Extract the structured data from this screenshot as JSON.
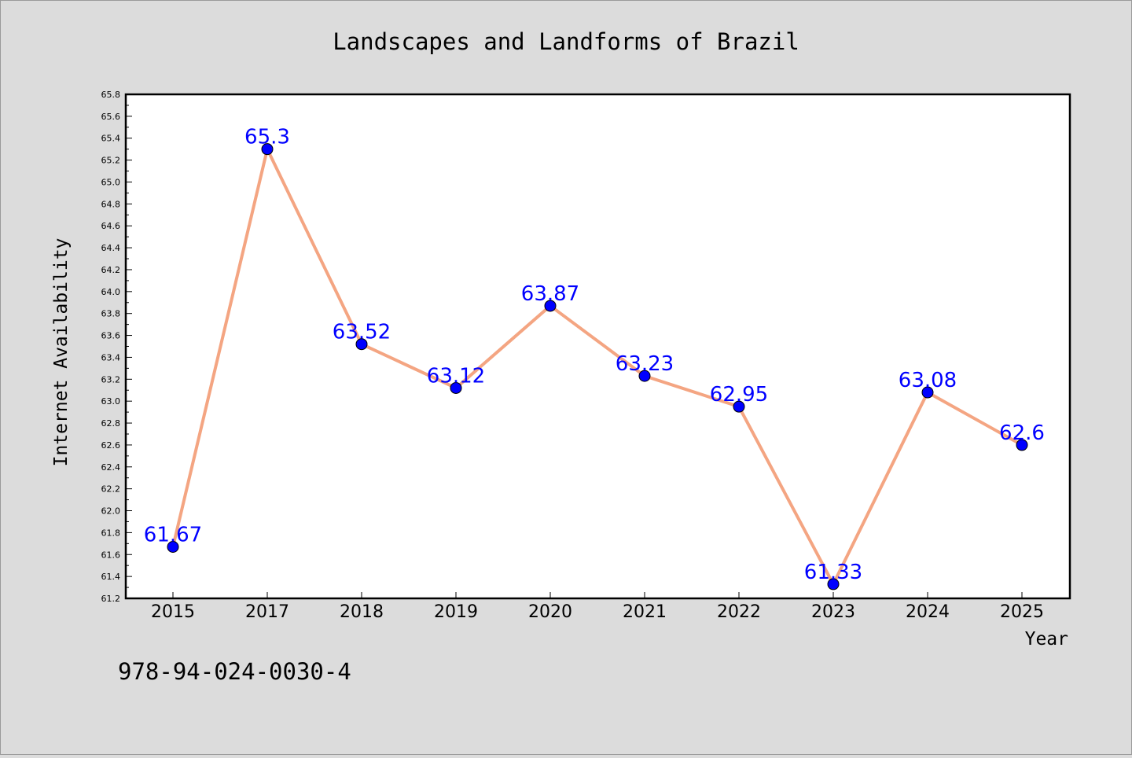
{
  "chart_data": {
    "type": "line",
    "title": "Landscapes and Landforms of Brazil",
    "xlabel": "Year",
    "ylabel": "Internet Availability",
    "categories": [
      "2015",
      "2017",
      "2018",
      "2019",
      "2020",
      "2021",
      "2022",
      "2023",
      "2024",
      "2025"
    ],
    "series": [
      {
        "values": [
          61.67,
          65.3,
          63.52,
          63.12,
          63.87,
          63.23,
          62.95,
          61.33,
          63.08,
          62.6
        ],
        "labels": [
          "61.67",
          "65.3",
          "63.52",
          "63.12",
          "63.87",
          "63.23",
          "62.95",
          "61.33",
          "63.08",
          "62.6"
        ],
        "line_color": "#f4a582",
        "marker_color": "#0000ff",
        "label_color": "#0000ff"
      }
    ],
    "ylim": [
      61.2,
      65.8
    ],
    "yticks": [
      "61.2",
      "61.4",
      "61.6",
      "61.8",
      "62.0",
      "62.2",
      "62.4",
      "62.6",
      "62.8",
      "63.0",
      "63.2",
      "63.4",
      "63.6",
      "63.8",
      "64.0",
      "64.2",
      "64.4",
      "64.6",
      "64.8",
      "65.0",
      "65.2",
      "65.4",
      "65.6",
      "65.8"
    ],
    "grid": false,
    "legend": "none"
  },
  "footer_text": "978-94-024-0030-4",
  "colors": {
    "background": "#dcdcdc",
    "plot_background": "#ffffff",
    "axis": "#000000"
  }
}
